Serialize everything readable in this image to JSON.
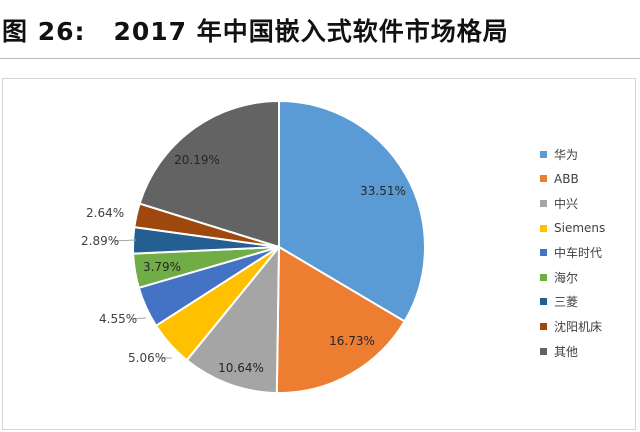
{
  "header": {
    "figure_label": "图 26:",
    "title": "2017 年中国嵌入式软件市场格局"
  },
  "chart_data": {
    "type": "pie",
    "title": "",
    "legend_position": "right",
    "slices": [
      {
        "name": "华为",
        "value": 33.51,
        "label": "33.51%",
        "color": "#5b9bd5",
        "label_color": "#262626"
      },
      {
        "name": "ABB",
        "value": 16.73,
        "label": "16.73%",
        "color": "#ed7d31",
        "label_color": "#262626"
      },
      {
        "name": "中兴",
        "value": 10.64,
        "label": "10.64%",
        "color": "#a5a5a5",
        "label_color": "#262626"
      },
      {
        "name": "Siemens",
        "value": 5.06,
        "label": "5.06%",
        "color": "#ffc000",
        "label_color": "#404040"
      },
      {
        "name": "中车时代",
        "value": 4.55,
        "label": "4.55%",
        "color": "#4472c4",
        "label_color": "#404040"
      },
      {
        "name": "海尔",
        "value": 3.79,
        "label": "3.79%",
        "color": "#70ad47",
        "label_color": "#262626"
      },
      {
        "name": "三菱",
        "value": 2.89,
        "label": "2.89%",
        "color": "#255e91",
        "label_color": "#404040"
      },
      {
        "name": "沈阳机床",
        "value": 2.64,
        "label": "2.64%",
        "color": "#9e480e",
        "label_color": "#404040"
      },
      {
        "name": "其他",
        "value": 20.19,
        "label": "20.19%",
        "color": "#636363",
        "label_color": "#262626"
      }
    ]
  }
}
